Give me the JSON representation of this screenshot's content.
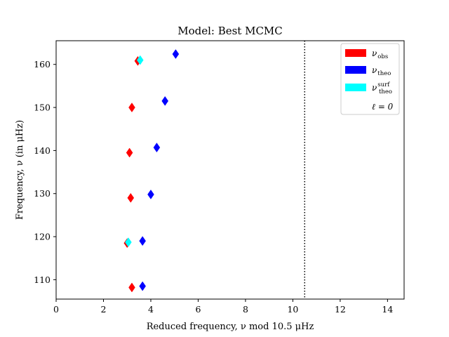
{
  "chart_data": {
    "type": "scatter",
    "title": "Model: Best MCMC",
    "xlabel": "Reduced frequency, ν mod 10.5 μHz",
    "ylabel": "Frequency, ν (in μHz)",
    "xlim": [
      0,
      14.7
    ],
    "ylim": [
      105.5,
      165.5
    ],
    "x_ticks": [
      0,
      2,
      4,
      6,
      8,
      10,
      12,
      14
    ],
    "y_ticks": [
      110,
      120,
      130,
      140,
      150,
      160
    ],
    "grid": false,
    "legend_position": "top-right",
    "vertical_lines": [
      {
        "x": 10.5,
        "style": "dotted",
        "color": "#000000"
      }
    ],
    "series": [
      {
        "name": "ν_obs",
        "color": "#ff0000",
        "marker": "diamond",
        "points": [
          {
            "x": 3.2,
            "y": 108.2
          },
          {
            "x": 3.0,
            "y": 118.5
          },
          {
            "x": 3.15,
            "y": 129.0
          },
          {
            "x": 3.1,
            "y": 139.5
          },
          {
            "x": 3.2,
            "y": 150.0
          },
          {
            "x": 3.45,
            "y": 160.8
          }
        ]
      },
      {
        "name": "ν_theo",
        "color": "#0000ff",
        "marker": "diamond",
        "points": [
          {
            "x": 3.65,
            "y": 108.5
          },
          {
            "x": 3.65,
            "y": 119.0
          },
          {
            "x": 4.0,
            "y": 129.8
          },
          {
            "x": 4.25,
            "y": 140.7
          },
          {
            "x": 4.6,
            "y": 151.5
          },
          {
            "x": 5.05,
            "y": 162.4
          }
        ]
      },
      {
        "name": "ν_theo^surf",
        "color": "#00ffff",
        "marker": "diamond",
        "points": [
          {
            "x": 3.05,
            "y": 118.7
          },
          {
            "x": 3.55,
            "y": 161.0
          }
        ]
      }
    ],
    "legend": [
      {
        "label": "ν",
        "sub": "obs",
        "sup": "",
        "color": "#ff0000",
        "kind": "patch"
      },
      {
        "label": "ν",
        "sub": "theo",
        "sup": "",
        "color": "#0000ff",
        "kind": "patch"
      },
      {
        "label": "ν",
        "sub": "theo",
        "sup": "surf",
        "color": "#00ffff",
        "kind": "patch"
      },
      {
        "label": "ℓ = 0",
        "sub": "",
        "sup": "",
        "color": "",
        "kind": "text"
      }
    ]
  }
}
